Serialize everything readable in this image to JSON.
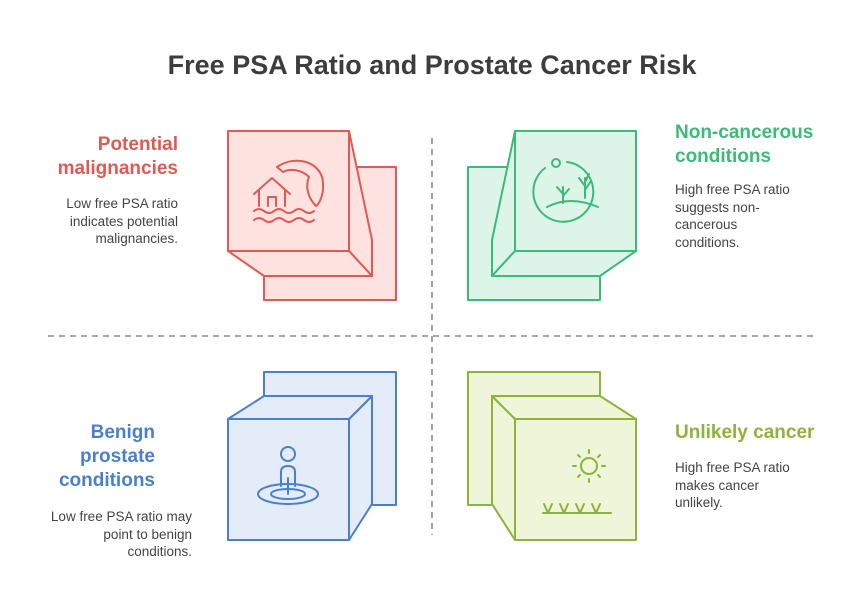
{
  "title": "Free PSA Ratio and Prostate Cancer Risk",
  "colors": {
    "red": "#e05a55",
    "red_fill": "#fde2e0",
    "green": "#3cba78",
    "green_fill": "#dcf5e8",
    "blue": "#4a7fd0",
    "blue_fill": "#e4ecfa",
    "olive": "#8cb43a",
    "olive_fill": "#eef5d8"
  },
  "quadrants": {
    "top_left": {
      "title": "Potential malignancies",
      "description": "Low free PSA ratio indicates potential malignancies.",
      "icon": "house-flood-icon"
    },
    "top_right": {
      "title": "Non-cancerous conditions",
      "description": "High free PSA ratio suggests non-cancerous conditions.",
      "icon": "plant-globe-icon"
    },
    "bottom_left": {
      "title": "Benign prostate conditions",
      "description": "Low free PSA ratio may point to benign conditions.",
      "icon": "person-hole-icon"
    },
    "bottom_right": {
      "title": "Unlikely cancer",
      "description": "High free PSA ratio makes cancer unlikely.",
      "icon": "sun-grass-icon"
    }
  }
}
